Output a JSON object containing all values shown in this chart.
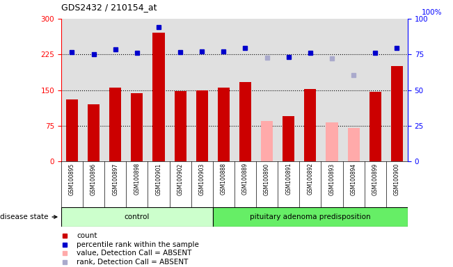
{
  "title": "GDS2432 / 210154_at",
  "samples": [
    "GSM100895",
    "GSM100896",
    "GSM100897",
    "GSM100898",
    "GSM100901",
    "GSM100902",
    "GSM100903",
    "GSM100888",
    "GSM100889",
    "GSM100890",
    "GSM100891",
    "GSM100892",
    "GSM100893",
    "GSM100894",
    "GSM100899",
    "GSM100900"
  ],
  "bar_values": [
    130,
    120,
    155,
    143,
    270,
    148,
    150,
    155,
    167,
    85,
    95,
    152,
    82,
    70,
    147,
    200
  ],
  "bar_absent": [
    false,
    false,
    false,
    false,
    false,
    false,
    false,
    false,
    false,
    true,
    false,
    false,
    true,
    true,
    false,
    false
  ],
  "rank_values": [
    76.7,
    75.3,
    78.3,
    76.3,
    94.3,
    76.7,
    77.3,
    77.3,
    79.3,
    72.7,
    73.3,
    76.0,
    72.3,
    60.7,
    76.3,
    79.3
  ],
  "rank_absent": [
    false,
    false,
    false,
    false,
    false,
    false,
    false,
    false,
    false,
    true,
    false,
    false,
    true,
    true,
    false,
    false
  ],
  "n_control": 7,
  "left_ylim": [
    0,
    300
  ],
  "right_ylim": [
    0,
    100
  ],
  "left_yticks": [
    0,
    75,
    150,
    225,
    300
  ],
  "right_yticks": [
    0,
    25,
    50,
    75,
    100
  ],
  "bar_color_normal": "#cc0000",
  "bar_color_absent": "#ffaaaa",
  "rank_color_normal": "#0000cc",
  "rank_color_absent": "#aaaacc",
  "control_label": "control",
  "disease_label": "pituitary adenoma predisposition",
  "disease_state_label": "disease state",
  "control_bg": "#ccffcc",
  "disease_bg": "#66ee66",
  "plot_bg": "#e0e0e0",
  "legend_items": [
    {
      "label": "count",
      "color": "#cc0000"
    },
    {
      "label": "percentile rank within the sample",
      "color": "#0000cc"
    },
    {
      "label": "value, Detection Call = ABSENT",
      "color": "#ffaaaa"
    },
    {
      "label": "rank, Detection Call = ABSENT",
      "color": "#aaaacc"
    }
  ]
}
